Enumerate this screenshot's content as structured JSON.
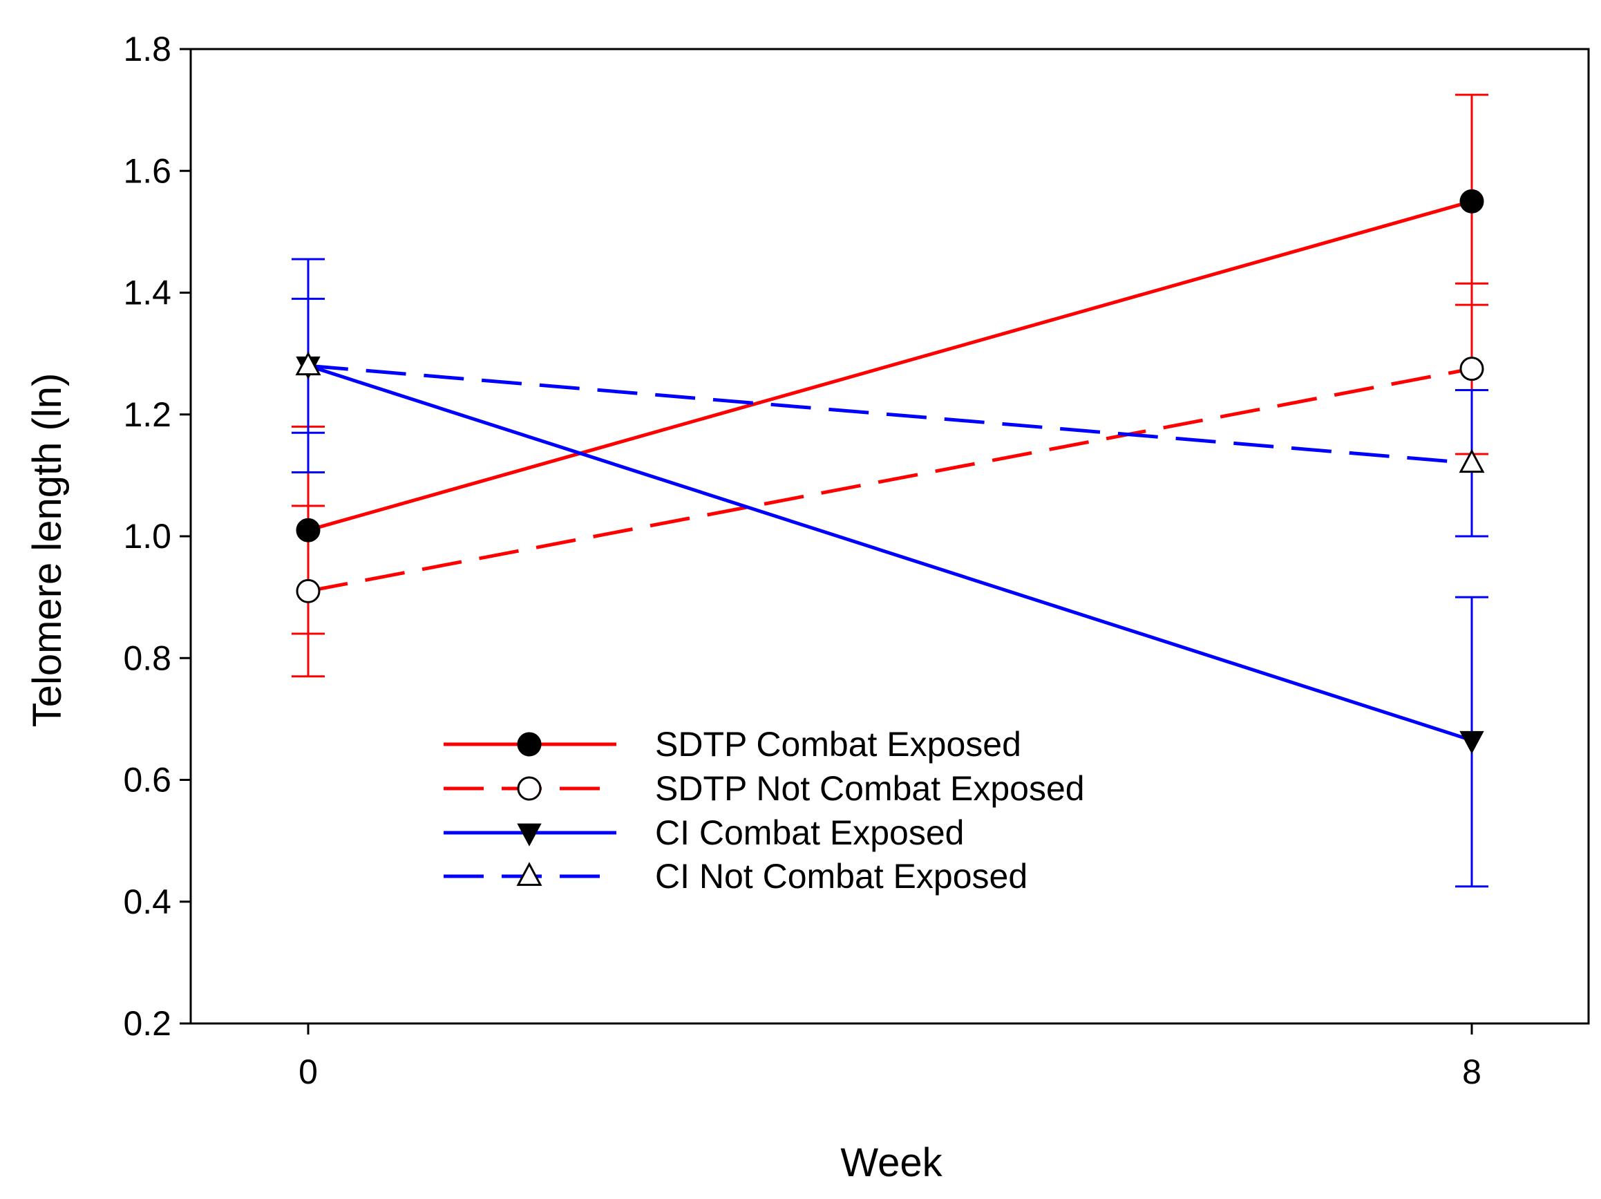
{
  "chart_data": {
    "type": "line",
    "title": "",
    "xlabel": "Week",
    "ylabel": "Telomere length (ln)",
    "x": [
      0,
      8
    ],
    "x_tick_labels": [
      "0",
      "8"
    ],
    "ylim": [
      0.2,
      1.8
    ],
    "y_ticks": [
      0.2,
      0.4,
      0.6,
      0.8,
      1.0,
      1.2,
      1.4,
      1.6,
      1.8
    ],
    "y_tick_labels": [
      "0.2",
      "0.4",
      "0.6",
      "0.8",
      "1.0",
      "1.2",
      "1.4",
      "1.6",
      "1.8"
    ],
    "grid": false,
    "legend_position": "center-bottom",
    "series": [
      {
        "name": "SDTP Combat Exposed",
        "values": [
          1.01,
          1.55
        ],
        "error_low": [
          0.84,
          1.38
        ],
        "error_high": [
          1.18,
          1.725
        ],
        "color": "#ff0000",
        "line_style": "solid",
        "marker": "filled-circle"
      },
      {
        "name": "SDTP Not Combat Exposed",
        "values": [
          0.91,
          1.275
        ],
        "error_low": [
          0.77,
          1.135
        ],
        "error_high": [
          1.05,
          1.415
        ],
        "color": "#ff0000",
        "line_style": "dashed",
        "marker": "open-circle"
      },
      {
        "name": "CI Combat Exposed",
        "values": [
          1.28,
          0.665
        ],
        "error_low": [
          1.105,
          0.425
        ],
        "error_high": [
          1.455,
          0.9
        ],
        "color": "#0000ff",
        "line_style": "solid",
        "marker": "filled-triangle-down"
      },
      {
        "name": "CI Not Combat Exposed",
        "values": [
          1.28,
          1.12
        ],
        "error_low": [
          1.17,
          1.0
        ],
        "error_high": [
          1.39,
          1.24
        ],
        "color": "#0000ff",
        "line_style": "dashed",
        "marker": "open-triangle-up"
      }
    ]
  }
}
